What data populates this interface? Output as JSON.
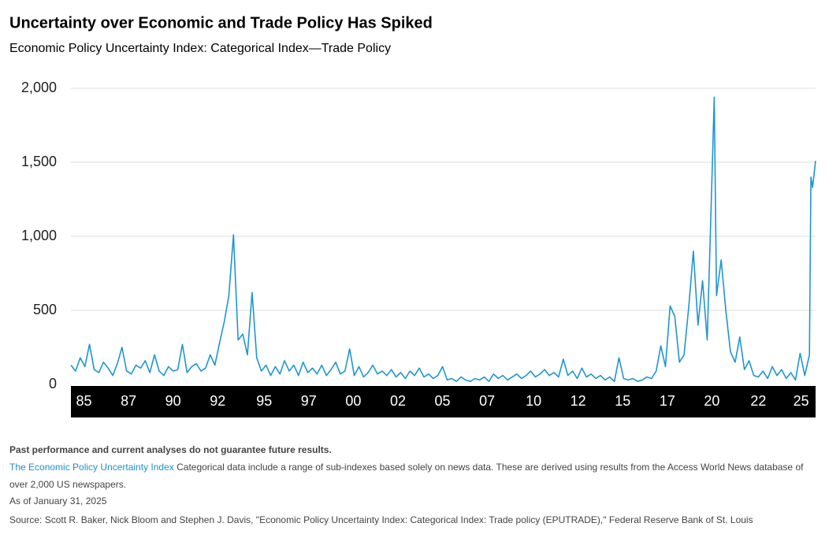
{
  "chart_data": {
    "type": "line",
    "title": "Uncertainty over Economic and Trade Policy Has Spiked",
    "subtitle": "Economic Policy Uncertainty Index: Categorical Index—Trade Policy",
    "x": [
      1985,
      1985.25,
      1985.5,
      1985.75,
      1986,
      1986.25,
      1986.5,
      1986.75,
      1987,
      1987.25,
      1987.5,
      1987.75,
      1988,
      1988.25,
      1988.5,
      1988.75,
      1989,
      1989.25,
      1989.5,
      1989.75,
      1990,
      1990.25,
      1990.5,
      1990.75,
      1991,
      1991.25,
      1991.5,
      1991.75,
      1992,
      1992.25,
      1992.5,
      1992.75,
      1993,
      1993.25,
      1993.5,
      1993.75,
      1994,
      1994.25,
      1994.5,
      1994.75,
      1995,
      1995.25,
      1995.5,
      1995.75,
      1996,
      1996.25,
      1996.5,
      1996.75,
      1997,
      1997.25,
      1997.5,
      1997.75,
      1998,
      1998.25,
      1998.5,
      1998.75,
      1999,
      1999.25,
      1999.5,
      1999.75,
      2000,
      2000.25,
      2000.5,
      2000.75,
      2001,
      2001.25,
      2001.5,
      2001.75,
      2002,
      2002.25,
      2002.5,
      2002.75,
      2003,
      2003.25,
      2003.5,
      2003.75,
      2004,
      2004.25,
      2004.5,
      2004.75,
      2005,
      2005.25,
      2005.5,
      2005.75,
      2006,
      2006.25,
      2006.5,
      2006.75,
      2007,
      2007.25,
      2007.5,
      2007.75,
      2008,
      2008.25,
      2008.5,
      2008.75,
      2009,
      2009.25,
      2009.5,
      2009.75,
      2010,
      2010.25,
      2010.5,
      2010.75,
      2011,
      2011.25,
      2011.5,
      2011.75,
      2012,
      2012.25,
      2012.5,
      2012.75,
      2013,
      2013.25,
      2013.5,
      2013.75,
      2014,
      2014.25,
      2014.5,
      2014.75,
      2015,
      2015.25,
      2015.5,
      2015.75,
      2016,
      2016.25,
      2016.5,
      2016.75,
      2017,
      2017.25,
      2017.5,
      2017.75,
      2018,
      2018.25,
      2018.5,
      2018.75,
      2019,
      2019.25,
      2019.5,
      2019.625,
      2019.75,
      2020,
      2020.25,
      2020.5,
      2020.75,
      2021,
      2021.25,
      2021.5,
      2021.75,
      2022,
      2022.25,
      2022.5,
      2022.75,
      2023,
      2023.25,
      2023.5,
      2023.75,
      2024,
      2024.25,
      2024.5,
      2024.75,
      2024.83,
      2024.92,
      2025.08
    ],
    "series": [
      {
        "name": "Trade Policy",
        "color": "#1f96cf",
        "values": [
          130,
          90,
          180,
          120,
          270,
          100,
          80,
          150,
          110,
          60,
          140,
          250,
          90,
          70,
          130,
          110,
          160,
          80,
          200,
          90,
          60,
          120,
          90,
          100,
          270,
          80,
          120,
          140,
          90,
          110,
          200,
          130,
          280,
          420,
          600,
          1010,
          300,
          340,
          200,
          620,
          180,
          90,
          130,
          60,
          120,
          70,
          160,
          90,
          130,
          60,
          150,
          80,
          110,
          70,
          130,
          60,
          100,
          150,
          70,
          90,
          240,
          60,
          120,
          50,
          80,
          130,
          70,
          90,
          60,
          100,
          50,
          80,
          40,
          90,
          60,
          110,
          50,
          70,
          40,
          60,
          120,
          30,
          40,
          20,
          50,
          30,
          20,
          40,
          30,
          50,
          20,
          70,
          40,
          60,
          30,
          50,
          70,
          40,
          60,
          90,
          50,
          70,
          100,
          60,
          80,
          50,
          170,
          60,
          90,
          40,
          110,
          50,
          70,
          40,
          60,
          30,
          50,
          20,
          180,
          40,
          30,
          40,
          20,
          30,
          50,
          40,
          90,
          260,
          120,
          530,
          460,
          150,
          200,
          520,
          900,
          400,
          700,
          300,
          1370,
          1940,
          600,
          840,
          500,
          220,
          150,
          320,
          100,
          160,
          60,
          50,
          90,
          40,
          120,
          60,
          100,
          40,
          80,
          30,
          210,
          60,
          200,
          1400,
          1330,
          1510
        ]
      }
    ],
    "xlim": [
      1985,
      2025.08
    ],
    "xticks": [
      {
        "value": 1985.7,
        "label": "85"
      },
      {
        "value": 1988.1,
        "label": "87"
      },
      {
        "value": 1990.5,
        "label": "90"
      },
      {
        "value": 1992.9,
        "label": "92"
      },
      {
        "value": 1995.4,
        "label": "95"
      },
      {
        "value": 1997.8,
        "label": "97"
      },
      {
        "value": 2000.2,
        "label": "00"
      },
      {
        "value": 2002.6,
        "label": "02"
      },
      {
        "value": 2005.0,
        "label": "05"
      },
      {
        "value": 2007.4,
        "label": "07"
      },
      {
        "value": 2009.9,
        "label": "10"
      },
      {
        "value": 2012.3,
        "label": "12"
      },
      {
        "value": 2014.7,
        "label": "15"
      },
      {
        "value": 2017.1,
        "label": "17"
      },
      {
        "value": 2019.5,
        "label": "20"
      },
      {
        "value": 2022.0,
        "label": "22"
      },
      {
        "value": 2024.3,
        "label": "25"
      }
    ],
    "ylim": [
      0,
      2000
    ],
    "yticks": [
      0,
      {
        "value": 500,
        "label": "500"
      },
      {
        "value": 1000,
        "label": "1,000"
      },
      {
        "value": 1500,
        "label": "1,500"
      },
      {
        "value": 2000,
        "label": "2,000"
      }
    ],
    "grid": true
  },
  "footnote": {
    "disclaimer": "Past performance and current analyses do not guarantee future results.",
    "link_text": "The Economic Policy Uncertainty Index",
    "text": "Categorical data include a range of sub-indexes based solely on news data. These are derived using results from the Access World News database of over 2,000 US newspapers.",
    "as_of": "As of January 31, 2025",
    "source": "Source: Scott R. Baker, Nick Bloom and Stephen J. Davis, \"Economic Policy Uncertainty Index: Categorical Index: Trade policy (EPUTRADE),\" Federal Reserve Bank of St. Louis"
  }
}
